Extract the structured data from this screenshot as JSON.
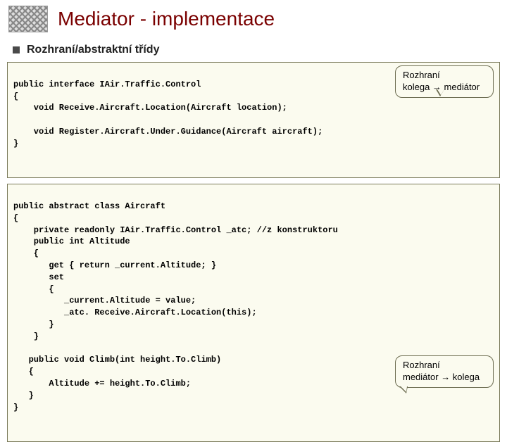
{
  "title": "Mediator - implementace",
  "subtitle": "Rozhraní/abstraktní třídy",
  "code1": "public interface IAir.Traffic.Control\n{\n    void Receive.Aircraft.Location(Aircraft location);\n\n    void Register.Aircraft.Under.Guidance(Aircraft aircraft);\n}",
  "callout1_line1": "Rozhraní",
  "callout1_line2": "kolega → mediátor",
  "code2": "public abstract class Aircraft\n{\n    private readonly IAir.Traffic.Control _atc; //z konstruktoru\n    public int Altitude\n    {\n       get { return _current.Altitude; }\n       set\n       {\n          _current.Altitude = value;\n          _atc. Receive.Aircraft.Location(this);\n       }\n    }\n\n   public void Climb(int height.To.Climb)\n   {\n       Altitude += height.To.Climb;\n   }\n}",
  "callout2_line1": "Rozhraní",
  "callout2_line2": "mediátor → kolega",
  "colors": {
    "title": "#7a0000",
    "box_bg": "#fbfbef",
    "box_border": "#7a7a5a",
    "callout_border": "#6b6b4f"
  }
}
